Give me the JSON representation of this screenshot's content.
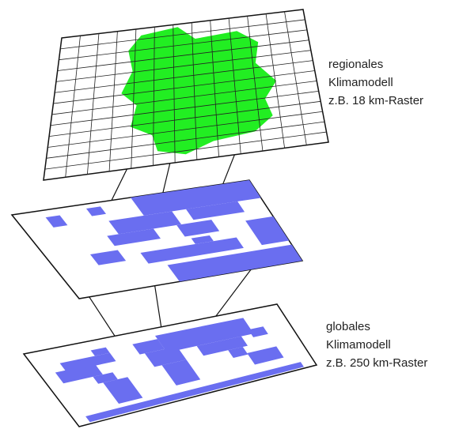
{
  "regional": {
    "lines": [
      "regionales",
      "Klimamodell",
      "z.B. 18 km-Raster"
    ]
  },
  "global": {
    "lines": [
      "globales",
      "Klimamodell",
      "z.B. 250 km-Raster"
    ]
  }
}
